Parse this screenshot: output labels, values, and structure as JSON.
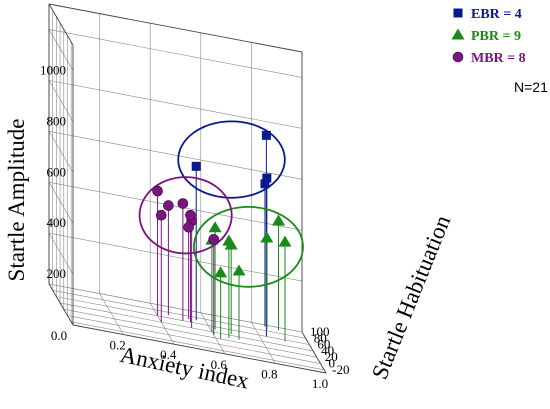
{
  "chart_data": {
    "type": "scatter3d",
    "xlabel": "Anxiety index",
    "ylabel": "Startle Habituation",
    "zlabel": "Startle Amplitude",
    "xticks": [
      "0.0",
      "0.2",
      "0.4",
      "0.6",
      "0.8",
      "1.0"
    ],
    "yticks": [
      "-20",
      "0",
      "20",
      "40",
      "60",
      "80",
      "100"
    ],
    "zticks": [
      "200",
      "400",
      "600",
      "800",
      "1000"
    ],
    "xlim": [
      0,
      1
    ],
    "ylim": [
      -30,
      100
    ],
    "zlim": [
      0,
      1100
    ],
    "grid": true,
    "legend_position": "top-right",
    "note": "N=21",
    "series": [
      {
        "name": "EBR = 4",
        "color": "#0a1a8c",
        "marker": "square",
        "points": [
          {
            "x": 0.83,
            "y": 60,
            "z": 790
          },
          {
            "x": 0.56,
            "y": 70,
            "z": 605
          },
          {
            "x": 0.85,
            "y": 85,
            "z": 595
          },
          {
            "x": 0.85,
            "y": 95,
            "z": 560
          }
        ]
      },
      {
        "name": "PBR = 9",
        "color": "#1a8a1a",
        "marker": "triangle",
        "points": [
          {
            "x": 0.6,
            "y": 40,
            "z": 360
          },
          {
            "x": 0.62,
            "y": 50,
            "z": 400
          },
          {
            "x": 0.68,
            "y": 45,
            "z": 350
          },
          {
            "x": 0.62,
            "y": 20,
            "z": 260
          },
          {
            "x": 0.66,
            "y": 30,
            "z": 380
          },
          {
            "x": 0.7,
            "y": 30,
            "z": 270
          },
          {
            "x": 0.85,
            "y": 85,
            "z": 360
          },
          {
            "x": 0.9,
            "y": 55,
            "z": 390
          },
          {
            "x": 0.9,
            "y": 90,
            "z": 430
          }
        ]
      },
      {
        "name": "MBR = 8",
        "color": "#7a1580",
        "marker": "circle",
        "points": [
          {
            "x": 0.4,
            "y": 60,
            "z": 490
          },
          {
            "x": 0.4,
            "y": 40,
            "z": 420
          },
          {
            "x": 0.45,
            "y": 70,
            "z": 430
          },
          {
            "x": 0.5,
            "y": 60,
            "z": 460
          },
          {
            "x": 0.52,
            "y": 40,
            "z": 420
          },
          {
            "x": 0.53,
            "y": 60,
            "z": 420
          },
          {
            "x": 0.53,
            "y": 70,
            "z": 360
          },
          {
            "x": 0.6,
            "y": 30,
            "z": 375
          }
        ]
      }
    ],
    "ellipses": [
      {
        "series": "EBR = 4",
        "color": "#0a1a8c"
      },
      {
        "series": "PBR = 9",
        "color": "#1a8a1a"
      },
      {
        "series": "MBR = 8",
        "color": "#7a1580"
      }
    ]
  }
}
